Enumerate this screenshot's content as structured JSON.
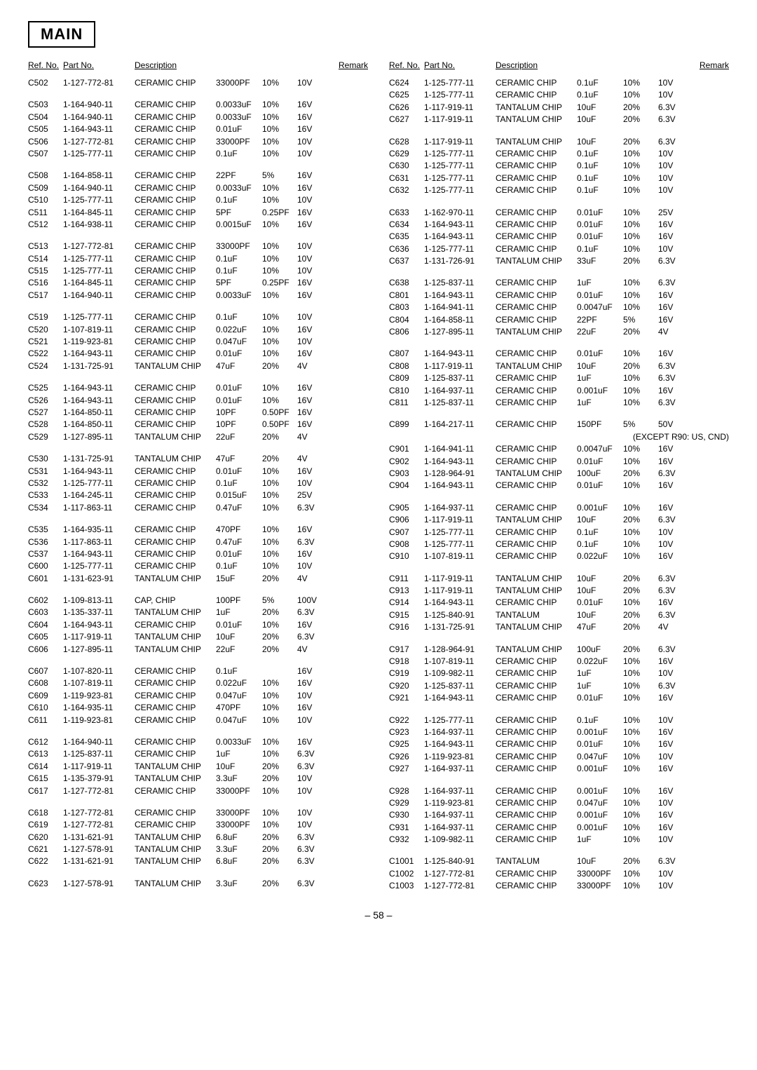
{
  "title": "MAIN",
  "page_number": "– 58 –",
  "headers": {
    "ref": "Ref. No.",
    "part": "Part No.",
    "desc": "Description",
    "remark": "Remark"
  },
  "special_note": "(EXCEPT R90: US, CND)",
  "style": {
    "font_size_body_pt": 9,
    "font_size_title_pt": 16,
    "colors": {
      "text": "#000000",
      "background": "#ffffff",
      "border": "#000000"
    }
  },
  "left_rows": [
    {
      "ref": "C502",
      "part": "1-127-772-81",
      "desc": "CERAMIC CHIP",
      "v1": "33000PF",
      "v2": "10%",
      "rmk": "10V"
    },
    {
      "gap": true
    },
    {
      "ref": "C503",
      "part": "1-164-940-11",
      "desc": "CERAMIC CHIP",
      "v1": "0.0033uF",
      "v2": "10%",
      "rmk": "16V"
    },
    {
      "ref": "C504",
      "part": "1-164-940-11",
      "desc": "CERAMIC CHIP",
      "v1": "0.0033uF",
      "v2": "10%",
      "rmk": "16V"
    },
    {
      "ref": "C505",
      "part": "1-164-943-11",
      "desc": "CERAMIC CHIP",
      "v1": "0.01uF",
      "v2": "10%",
      "rmk": "16V"
    },
    {
      "ref": "C506",
      "part": "1-127-772-81",
      "desc": "CERAMIC CHIP",
      "v1": "33000PF",
      "v2": "10%",
      "rmk": "10V"
    },
    {
      "ref": "C507",
      "part": "1-125-777-11",
      "desc": "CERAMIC CHIP",
      "v1": "0.1uF",
      "v2": "10%",
      "rmk": "10V"
    },
    {
      "gap": true
    },
    {
      "ref": "C508",
      "part": "1-164-858-11",
      "desc": "CERAMIC CHIP",
      "v1": "22PF",
      "v2": "5%",
      "rmk": "16V"
    },
    {
      "ref": "C509",
      "part": "1-164-940-11",
      "desc": "CERAMIC CHIP",
      "v1": "0.0033uF",
      "v2": "10%",
      "rmk": "16V"
    },
    {
      "ref": "C510",
      "part": "1-125-777-11",
      "desc": "CERAMIC CHIP",
      "v1": "0.1uF",
      "v2": "10%",
      "rmk": "10V"
    },
    {
      "ref": "C511",
      "part": "1-164-845-11",
      "desc": "CERAMIC CHIP",
      "v1": "5PF",
      "v2": "0.25PF",
      "rmk": "16V"
    },
    {
      "ref": "C512",
      "part": "1-164-938-11",
      "desc": "CERAMIC CHIP",
      "v1": "0.0015uF",
      "v2": "10%",
      "rmk": "16V"
    },
    {
      "gap": true
    },
    {
      "ref": "C513",
      "part": "1-127-772-81",
      "desc": "CERAMIC CHIP",
      "v1": "33000PF",
      "v2": "10%",
      "rmk": "10V"
    },
    {
      "ref": "C514",
      "part": "1-125-777-11",
      "desc": "CERAMIC CHIP",
      "v1": "0.1uF",
      "v2": "10%",
      "rmk": "10V"
    },
    {
      "ref": "C515",
      "part": "1-125-777-11",
      "desc": "CERAMIC CHIP",
      "v1": "0.1uF",
      "v2": "10%",
      "rmk": "10V"
    },
    {
      "ref": "C516",
      "part": "1-164-845-11",
      "desc": "CERAMIC CHIP",
      "v1": "5PF",
      "v2": "0.25PF",
      "rmk": "16V"
    },
    {
      "ref": "C517",
      "part": "1-164-940-11",
      "desc": "CERAMIC CHIP",
      "v1": "0.0033uF",
      "v2": "10%",
      "rmk": "16V"
    },
    {
      "gap": true
    },
    {
      "ref": "C519",
      "part": "1-125-777-11",
      "desc": "CERAMIC CHIP",
      "v1": "0.1uF",
      "v2": "10%",
      "rmk": "10V"
    },
    {
      "ref": "C520",
      "part": "1-107-819-11",
      "desc": "CERAMIC CHIP",
      "v1": "0.022uF",
      "v2": "10%",
      "rmk": "16V"
    },
    {
      "ref": "C521",
      "part": "1-119-923-81",
      "desc": "CERAMIC CHIP",
      "v1": "0.047uF",
      "v2": "10%",
      "rmk": "10V"
    },
    {
      "ref": "C522",
      "part": "1-164-943-11",
      "desc": "CERAMIC CHIP",
      "v1": "0.01uF",
      "v2": "10%",
      "rmk": "16V"
    },
    {
      "ref": "C524",
      "part": "1-131-725-91",
      "desc": "TANTALUM CHIP",
      "v1": "47uF",
      "v2": "20%",
      "rmk": "4V"
    },
    {
      "gap": true
    },
    {
      "ref": "C525",
      "part": "1-164-943-11",
      "desc": "CERAMIC CHIP",
      "v1": "0.01uF",
      "v2": "10%",
      "rmk": "16V"
    },
    {
      "ref": "C526",
      "part": "1-164-943-11",
      "desc": "CERAMIC CHIP",
      "v1": "0.01uF",
      "v2": "10%",
      "rmk": "16V"
    },
    {
      "ref": "C527",
      "part": "1-164-850-11",
      "desc": "CERAMIC CHIP",
      "v1": "10PF",
      "v2": "0.50PF",
      "rmk": "16V"
    },
    {
      "ref": "C528",
      "part": "1-164-850-11",
      "desc": "CERAMIC CHIP",
      "v1": "10PF",
      "v2": "0.50PF",
      "rmk": "16V"
    },
    {
      "ref": "C529",
      "part": "1-127-895-11",
      "desc": "TANTALUM CHIP",
      "v1": "22uF",
      "v2": "20%",
      "rmk": "4V"
    },
    {
      "gap": true
    },
    {
      "ref": "C530",
      "part": "1-131-725-91",
      "desc": "TANTALUM CHIP",
      "v1": "47uF",
      "v2": "20%",
      "rmk": "4V"
    },
    {
      "ref": "C531",
      "part": "1-164-943-11",
      "desc": "CERAMIC CHIP",
      "v1": "0.01uF",
      "v2": "10%",
      "rmk": "16V"
    },
    {
      "ref": "C532",
      "part": "1-125-777-11",
      "desc": "CERAMIC CHIP",
      "v1": "0.1uF",
      "v2": "10%",
      "rmk": "10V"
    },
    {
      "ref": "C533",
      "part": "1-164-245-11",
      "desc": "CERAMIC CHIP",
      "v1": "0.015uF",
      "v2": "10%",
      "rmk": "25V"
    },
    {
      "ref": "C534",
      "part": "1-117-863-11",
      "desc": "CERAMIC CHIP",
      "v1": "0.47uF",
      "v2": "10%",
      "rmk": "6.3V"
    },
    {
      "gap": true
    },
    {
      "ref": "C535",
      "part": "1-164-935-11",
      "desc": "CERAMIC CHIP",
      "v1": "470PF",
      "v2": "10%",
      "rmk": "16V"
    },
    {
      "ref": "C536",
      "part": "1-117-863-11",
      "desc": "CERAMIC CHIP",
      "v1": "0.47uF",
      "v2": "10%",
      "rmk": "6.3V"
    },
    {
      "ref": "C537",
      "part": "1-164-943-11",
      "desc": "CERAMIC CHIP",
      "v1": "0.01uF",
      "v2": "10%",
      "rmk": "16V"
    },
    {
      "ref": "C600",
      "part": "1-125-777-11",
      "desc": "CERAMIC CHIP",
      "v1": "0.1uF",
      "v2": "10%",
      "rmk": "10V"
    },
    {
      "ref": "C601",
      "part": "1-131-623-91",
      "desc": "TANTALUM CHIP",
      "v1": "15uF",
      "v2": "20%",
      "rmk": "4V"
    },
    {
      "gap": true
    },
    {
      "ref": "C602",
      "part": "1-109-813-11",
      "desc": "CAP, CHIP",
      "v1": "100PF",
      "v2": "5%",
      "rmk": "100V"
    },
    {
      "ref": "C603",
      "part": "1-135-337-11",
      "desc": "TANTALUM CHIP",
      "v1": "1uF",
      "v2": "20%",
      "rmk": "6.3V"
    },
    {
      "ref": "C604",
      "part": "1-164-943-11",
      "desc": "CERAMIC CHIP",
      "v1": "0.01uF",
      "v2": "10%",
      "rmk": "16V"
    },
    {
      "ref": "C605",
      "part": "1-117-919-11",
      "desc": "TANTALUM CHIP",
      "v1": "10uF",
      "v2": "20%",
      "rmk": "6.3V"
    },
    {
      "ref": "C606",
      "part": "1-127-895-11",
      "desc": "TANTALUM CHIP",
      "v1": "22uF",
      "v2": "20%",
      "rmk": "4V"
    },
    {
      "gap": true
    },
    {
      "ref": "C607",
      "part": "1-107-820-11",
      "desc": "CERAMIC CHIP",
      "v1": "0.1uF",
      "v2": "",
      "rmk": "16V"
    },
    {
      "ref": "C608",
      "part": "1-107-819-11",
      "desc": "CERAMIC CHIP",
      "v1": "0.022uF",
      "v2": "10%",
      "rmk": "16V"
    },
    {
      "ref": "C609",
      "part": "1-119-923-81",
      "desc": "CERAMIC CHIP",
      "v1": "0.047uF",
      "v2": "10%",
      "rmk": "10V"
    },
    {
      "ref": "C610",
      "part": "1-164-935-11",
      "desc": "CERAMIC CHIP",
      "v1": "470PF",
      "v2": "10%",
      "rmk": "16V"
    },
    {
      "ref": "C611",
      "part": "1-119-923-81",
      "desc": "CERAMIC CHIP",
      "v1": "0.047uF",
      "v2": "10%",
      "rmk": "10V"
    },
    {
      "gap": true
    },
    {
      "ref": "C612",
      "part": "1-164-940-11",
      "desc": "CERAMIC CHIP",
      "v1": "0.0033uF",
      "v2": "10%",
      "rmk": "16V"
    },
    {
      "ref": "C613",
      "part": "1-125-837-11",
      "desc": "CERAMIC CHIP",
      "v1": "1uF",
      "v2": "10%",
      "rmk": "6.3V"
    },
    {
      "ref": "C614",
      "part": "1-117-919-11",
      "desc": "TANTALUM CHIP",
      "v1": "10uF",
      "v2": "20%",
      "rmk": "6.3V"
    },
    {
      "ref": "C615",
      "part": "1-135-379-91",
      "desc": "TANTALUM CHIP",
      "v1": "3.3uF",
      "v2": "20%",
      "rmk": "10V"
    },
    {
      "ref": "C617",
      "part": "1-127-772-81",
      "desc": "CERAMIC CHIP",
      "v1": "33000PF",
      "v2": "10%",
      "rmk": "10V"
    },
    {
      "gap": true
    },
    {
      "ref": "C618",
      "part": "1-127-772-81",
      "desc": "CERAMIC CHIP",
      "v1": "33000PF",
      "v2": "10%",
      "rmk": "10V"
    },
    {
      "ref": "C619",
      "part": "1-127-772-81",
      "desc": "CERAMIC CHIP",
      "v1": "33000PF",
      "v2": "10%",
      "rmk": "10V"
    },
    {
      "ref": "C620",
      "part": "1-131-621-91",
      "desc": "TANTALUM CHIP",
      "v1": "6.8uF",
      "v2": "20%",
      "rmk": "6.3V"
    },
    {
      "ref": "C621",
      "part": "1-127-578-91",
      "desc": "TANTALUM CHIP",
      "v1": "3.3uF",
      "v2": "20%",
      "rmk": "6.3V"
    },
    {
      "ref": "C622",
      "part": "1-131-621-91",
      "desc": "TANTALUM CHIP",
      "v1": "6.8uF",
      "v2": "20%",
      "rmk": "6.3V"
    },
    {
      "gap": true
    },
    {
      "ref": "C623",
      "part": "1-127-578-91",
      "desc": "TANTALUM CHIP",
      "v1": "3.3uF",
      "v2": "20%",
      "rmk": "6.3V"
    }
  ],
  "right_rows": [
    {
      "ref": "C624",
      "part": "1-125-777-11",
      "desc": "CERAMIC CHIP",
      "v1": "0.1uF",
      "v2": "10%",
      "rmk": "10V"
    },
    {
      "ref": "C625",
      "part": "1-125-777-11",
      "desc": "CERAMIC CHIP",
      "v1": "0.1uF",
      "v2": "10%",
      "rmk": "10V"
    },
    {
      "ref": "C626",
      "part": "1-117-919-11",
      "desc": "TANTALUM CHIP",
      "v1": "10uF",
      "v2": "20%",
      "rmk": "6.3V"
    },
    {
      "ref": "C627",
      "part": "1-117-919-11",
      "desc": "TANTALUM CHIP",
      "v1": "10uF",
      "v2": "20%",
      "rmk": "6.3V"
    },
    {
      "gap": true
    },
    {
      "ref": "C628",
      "part": "1-117-919-11",
      "desc": "TANTALUM CHIP",
      "v1": "10uF",
      "v2": "20%",
      "rmk": "6.3V"
    },
    {
      "ref": "C629",
      "part": "1-125-777-11",
      "desc": "CERAMIC CHIP",
      "v1": "0.1uF",
      "v2": "10%",
      "rmk": "10V"
    },
    {
      "ref": "C630",
      "part": "1-125-777-11",
      "desc": "CERAMIC CHIP",
      "v1": "0.1uF",
      "v2": "10%",
      "rmk": "10V"
    },
    {
      "ref": "C631",
      "part": "1-125-777-11",
      "desc": "CERAMIC CHIP",
      "v1": "0.1uF",
      "v2": "10%",
      "rmk": "10V"
    },
    {
      "ref": "C632",
      "part": "1-125-777-11",
      "desc": "CERAMIC CHIP",
      "v1": "0.1uF",
      "v2": "10%",
      "rmk": "10V"
    },
    {
      "gap": true
    },
    {
      "ref": "C633",
      "part": "1-162-970-11",
      "desc": "CERAMIC CHIP",
      "v1": "0.01uF",
      "v2": "10%",
      "rmk": "25V"
    },
    {
      "ref": "C634",
      "part": "1-164-943-11",
      "desc": "CERAMIC CHIP",
      "v1": "0.01uF",
      "v2": "10%",
      "rmk": "16V"
    },
    {
      "ref": "C635",
      "part": "1-164-943-11",
      "desc": "CERAMIC CHIP",
      "v1": "0.01uF",
      "v2": "10%",
      "rmk": "16V"
    },
    {
      "ref": "C636",
      "part": "1-125-777-11",
      "desc": "CERAMIC CHIP",
      "v1": "0.1uF",
      "v2": "10%",
      "rmk": "10V"
    },
    {
      "ref": "C637",
      "part": "1-131-726-91",
      "desc": "TANTALUM CHIP",
      "v1": "33uF",
      "v2": "20%",
      "rmk": "6.3V"
    },
    {
      "gap": true
    },
    {
      "ref": "C638",
      "part": "1-125-837-11",
      "desc": "CERAMIC CHIP",
      "v1": "1uF",
      "v2": "10%",
      "rmk": "6.3V"
    },
    {
      "ref": "C801",
      "part": "1-164-943-11",
      "desc": "CERAMIC CHIP",
      "v1": "0.01uF",
      "v2": "10%",
      "rmk": "16V"
    },
    {
      "ref": "C803",
      "part": "1-164-941-11",
      "desc": "CERAMIC CHIP",
      "v1": "0.0047uF",
      "v2": "10%",
      "rmk": "16V"
    },
    {
      "ref": "C804",
      "part": "1-164-858-11",
      "desc": "CERAMIC CHIP",
      "v1": "22PF",
      "v2": "5%",
      "rmk": "16V"
    },
    {
      "ref": "C806",
      "part": "1-127-895-11",
      "desc": "TANTALUM CHIP",
      "v1": "22uF",
      "v2": "20%",
      "rmk": "4V"
    },
    {
      "gap": true
    },
    {
      "ref": "C807",
      "part": "1-164-943-11",
      "desc": "CERAMIC CHIP",
      "v1": "0.01uF",
      "v2": "10%",
      "rmk": "16V"
    },
    {
      "ref": "C808",
      "part": "1-117-919-11",
      "desc": "TANTALUM CHIP",
      "v1": "10uF",
      "v2": "20%",
      "rmk": "6.3V"
    },
    {
      "ref": "C809",
      "part": "1-125-837-11",
      "desc": "CERAMIC CHIP",
      "v1": "1uF",
      "v2": "10%",
      "rmk": "6.3V"
    },
    {
      "ref": "C810",
      "part": "1-164-937-11",
      "desc": "CERAMIC CHIP",
      "v1": "0.001uF",
      "v2": "10%",
      "rmk": "16V"
    },
    {
      "ref": "C811",
      "part": "1-125-837-11",
      "desc": "CERAMIC CHIP",
      "v1": "1uF",
      "v2": "10%",
      "rmk": "6.3V"
    },
    {
      "gap": true
    },
    {
      "ref": "C899",
      "part": "1-164-217-11",
      "desc": "CERAMIC CHIP",
      "v1": "150PF",
      "v2": "5%",
      "rmk": "50V"
    },
    {
      "special": true
    },
    {
      "ref": "C901",
      "part": "1-164-941-11",
      "desc": "CERAMIC CHIP",
      "v1": "0.0047uF",
      "v2": "10%",
      "rmk": "16V"
    },
    {
      "ref": "C902",
      "part": "1-164-943-11",
      "desc": "CERAMIC CHIP",
      "v1": "0.01uF",
      "v2": "10%",
      "rmk": "16V"
    },
    {
      "ref": "C903",
      "part": "1-128-964-91",
      "desc": "TANTALUM CHIP",
      "v1": "100uF",
      "v2": "20%",
      "rmk": "6.3V"
    },
    {
      "ref": "C904",
      "part": "1-164-943-11",
      "desc": "CERAMIC CHIP",
      "v1": "0.01uF",
      "v2": "10%",
      "rmk": "16V"
    },
    {
      "gap": true
    },
    {
      "ref": "C905",
      "part": "1-164-937-11",
      "desc": "CERAMIC CHIP",
      "v1": "0.001uF",
      "v2": "10%",
      "rmk": "16V"
    },
    {
      "ref": "C906",
      "part": "1-117-919-11",
      "desc": "TANTALUM CHIP",
      "v1": "10uF",
      "v2": "20%",
      "rmk": "6.3V"
    },
    {
      "ref": "C907",
      "part": "1-125-777-11",
      "desc": "CERAMIC CHIP",
      "v1": "0.1uF",
      "v2": "10%",
      "rmk": "10V"
    },
    {
      "ref": "C908",
      "part": "1-125-777-11",
      "desc": "CERAMIC CHIP",
      "v1": "0.1uF",
      "v2": "10%",
      "rmk": "10V"
    },
    {
      "ref": "C910",
      "part": "1-107-819-11",
      "desc": "CERAMIC CHIP",
      "v1": "0.022uF",
      "v2": "10%",
      "rmk": "16V"
    },
    {
      "gap": true
    },
    {
      "ref": "C911",
      "part": "1-117-919-11",
      "desc": "TANTALUM CHIP",
      "v1": "10uF",
      "v2": "20%",
      "rmk": "6.3V"
    },
    {
      "ref": "C913",
      "part": "1-117-919-11",
      "desc": "TANTALUM CHIP",
      "v1": "10uF",
      "v2": "20%",
      "rmk": "6.3V"
    },
    {
      "ref": "C914",
      "part": "1-164-943-11",
      "desc": "CERAMIC CHIP",
      "v1": "0.01uF",
      "v2": "10%",
      "rmk": "16V"
    },
    {
      "ref": "C915",
      "part": "1-125-840-91",
      "desc": "TANTALUM",
      "v1": "10uF",
      "v2": "20%",
      "rmk": "6.3V"
    },
    {
      "ref": "C916",
      "part": "1-131-725-91",
      "desc": "TANTALUM CHIP",
      "v1": "47uF",
      "v2": "20%",
      "rmk": "4V"
    },
    {
      "gap": true
    },
    {
      "ref": "C917",
      "part": "1-128-964-91",
      "desc": "TANTALUM CHIP",
      "v1": "100uF",
      "v2": "20%",
      "rmk": "6.3V"
    },
    {
      "ref": "C918",
      "part": "1-107-819-11",
      "desc": "CERAMIC CHIP",
      "v1": "0.022uF",
      "v2": "10%",
      "rmk": "16V"
    },
    {
      "ref": "C919",
      "part": "1-109-982-11",
      "desc": "CERAMIC CHIP",
      "v1": "1uF",
      "v2": "10%",
      "rmk": "10V"
    },
    {
      "ref": "C920",
      "part": "1-125-837-11",
      "desc": "CERAMIC CHIP",
      "v1": "1uF",
      "v2": "10%",
      "rmk": "6.3V"
    },
    {
      "ref": "C921",
      "part": "1-164-943-11",
      "desc": "CERAMIC CHIP",
      "v1": "0.01uF",
      "v2": "10%",
      "rmk": "16V"
    },
    {
      "gap": true
    },
    {
      "ref": "C922",
      "part": "1-125-777-11",
      "desc": "CERAMIC CHIP",
      "v1": "0.1uF",
      "v2": "10%",
      "rmk": "10V"
    },
    {
      "ref": "C923",
      "part": "1-164-937-11",
      "desc": "CERAMIC CHIP",
      "v1": "0.001uF",
      "v2": "10%",
      "rmk": "16V"
    },
    {
      "ref": "C925",
      "part": "1-164-943-11",
      "desc": "CERAMIC CHIP",
      "v1": "0.01uF",
      "v2": "10%",
      "rmk": "16V"
    },
    {
      "ref": "C926",
      "part": "1-119-923-81",
      "desc": "CERAMIC CHIP",
      "v1": "0.047uF",
      "v2": "10%",
      "rmk": "10V"
    },
    {
      "ref": "C927",
      "part": "1-164-937-11",
      "desc": "CERAMIC CHIP",
      "v1": "0.001uF",
      "v2": "10%",
      "rmk": "16V"
    },
    {
      "gap": true
    },
    {
      "ref": "C928",
      "part": "1-164-937-11",
      "desc": "CERAMIC CHIP",
      "v1": "0.001uF",
      "v2": "10%",
      "rmk": "16V"
    },
    {
      "ref": "C929",
      "part": "1-119-923-81",
      "desc": "CERAMIC CHIP",
      "v1": "0.047uF",
      "v2": "10%",
      "rmk": "10V"
    },
    {
      "ref": "C930",
      "part": "1-164-937-11",
      "desc": "CERAMIC CHIP",
      "v1": "0.001uF",
      "v2": "10%",
      "rmk": "16V"
    },
    {
      "ref": "C931",
      "part": "1-164-937-11",
      "desc": "CERAMIC CHIP",
      "v1": "0.001uF",
      "v2": "10%",
      "rmk": "16V"
    },
    {
      "ref": "C932",
      "part": "1-109-982-11",
      "desc": "CERAMIC CHIP",
      "v1": "1uF",
      "v2": "10%",
      "rmk": "10V"
    },
    {
      "gap": true
    },
    {
      "ref": "C1001",
      "part": "1-125-840-91",
      "desc": "TANTALUM",
      "v1": "10uF",
      "v2": "20%",
      "rmk": "6.3V"
    },
    {
      "ref": "C1002",
      "part": "1-127-772-81",
      "desc": "CERAMIC CHIP",
      "v1": "33000PF",
      "v2": "10%",
      "rmk": "10V"
    },
    {
      "ref": "C1003",
      "part": "1-127-772-81",
      "desc": "CERAMIC CHIP",
      "v1": "33000PF",
      "v2": "10%",
      "rmk": "10V"
    }
  ]
}
